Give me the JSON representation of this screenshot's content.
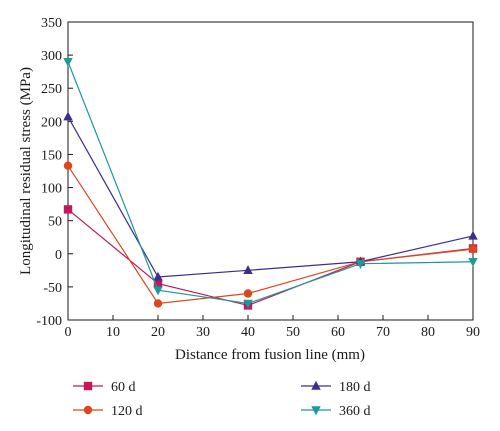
{
  "chart_data": {
    "type": "line",
    "xlabel": "Distance from fusion line (mm)",
    "ylabel": "Longitudinal residual stress (MPa)",
    "xlim": [
      0,
      90
    ],
    "ylim": [
      -100,
      350
    ],
    "xticks": [
      0,
      10,
      20,
      30,
      40,
      50,
      60,
      70,
      80,
      90
    ],
    "yticks": [
      -100,
      -50,
      0,
      50,
      100,
      150,
      200,
      250,
      300,
      350
    ],
    "grid": false,
    "legend_position": "bottom",
    "series": [
      {
        "name": "60 d",
        "color": "#c2185b",
        "marker": "square",
        "x": [
          0,
          20,
          40,
          65,
          90
        ],
        "y": [
          67,
          -45,
          -78,
          -12,
          8
        ]
      },
      {
        "name": "120 d",
        "color": "#e0451f",
        "marker": "circle",
        "x": [
          0,
          20,
          40,
          65,
          90
        ],
        "y": [
          133,
          -75,
          -60,
          -12,
          7
        ]
      },
      {
        "name": "180 d",
        "color": "#3a2e8f",
        "marker": "triangle-up",
        "x": [
          0,
          20,
          40,
          65,
          90
        ],
        "y": [
          207,
          -35,
          -25,
          -12,
          27
        ]
      },
      {
        "name": "360 d",
        "color": "#1a9a9a",
        "marker": "triangle-down",
        "x": [
          0,
          20,
          40,
          65,
          90
        ],
        "y": [
          290,
          -55,
          -75,
          -15,
          -12
        ]
      }
    ]
  }
}
